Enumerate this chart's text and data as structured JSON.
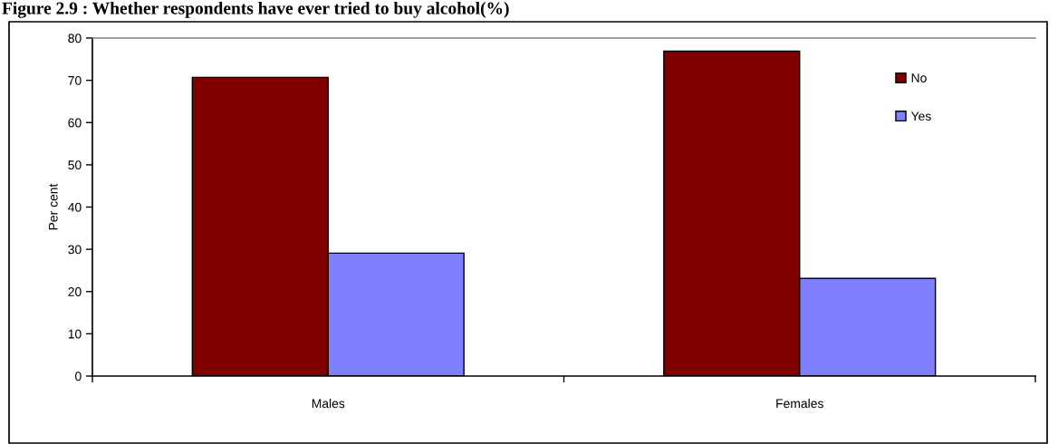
{
  "chart_data": {
    "type": "bar",
    "title": "Figure 2.9 : Whether respondents have ever tried to buy alcohol(%)",
    "ylabel": "Per cent",
    "categories": [
      "Males",
      "Females"
    ],
    "series": [
      {
        "name": "No",
        "color": "#800000",
        "values": [
          70.7,
          76.9
        ]
      },
      {
        "name": "Yes",
        "color": "#8080ff",
        "values": [
          29.1,
          23.1
        ]
      }
    ],
    "ylim": [
      0,
      80
    ],
    "yticks": [
      0,
      10,
      20,
      30,
      40,
      50,
      60,
      70,
      80
    ],
    "grid": false,
    "legend": "top right"
  }
}
